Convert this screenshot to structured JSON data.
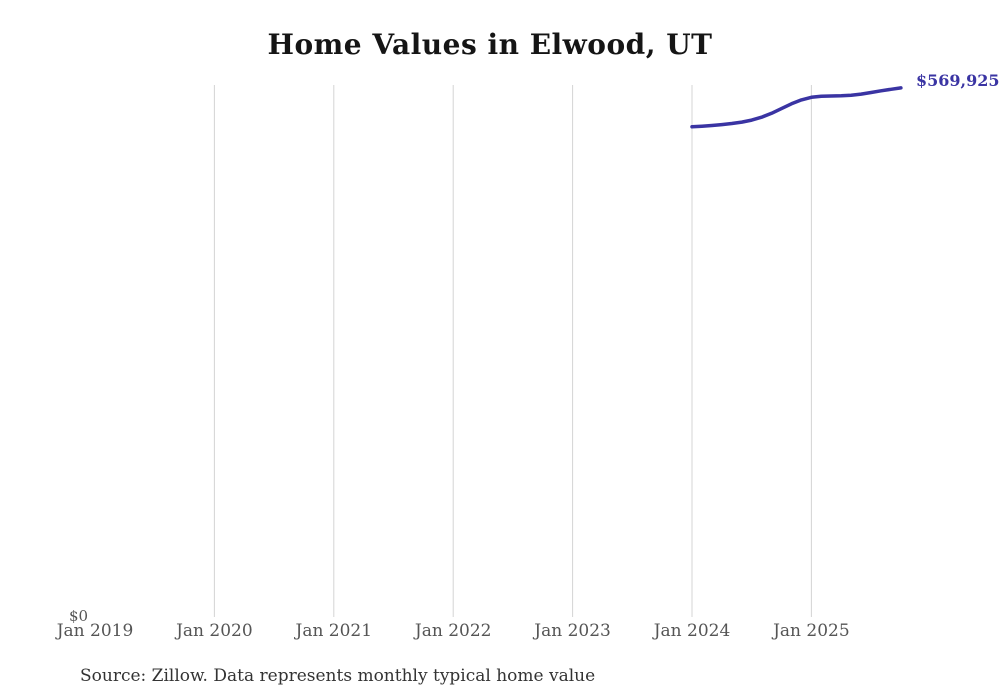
{
  "header": {
    "title": "Home Values in Elwood, UT"
  },
  "footer": {
    "source_note": "Source: Zillow. Data represents monthly typical home value"
  },
  "colors": {
    "background": "#ffffff",
    "title_text": "#151515",
    "axis_text": "#555555",
    "source_text": "#333333",
    "gridline": "#d4d4d4",
    "line": "#3a34a3",
    "end_label_text": "#3a34a3"
  },
  "chart_data": {
    "type": "line",
    "title": "Home Values in Elwood, UT",
    "series_name": "Typical home value",
    "grid": "vertical",
    "ylim": [
      0,
      573000
    ],
    "y_zero_label": "$0",
    "end_value_label": "$569,925",
    "x_ticks": [
      {
        "label": "Jan 2019",
        "month": "2019-01"
      },
      {
        "label": "Jan 2020",
        "month": "2020-01"
      },
      {
        "label": "Jan 2021",
        "month": "2021-01"
      },
      {
        "label": "Jan 2022",
        "month": "2022-01"
      },
      {
        "label": "Jan 2023",
        "month": "2023-01"
      },
      {
        "label": "Jan 2024",
        "month": "2024-01"
      },
      {
        "label": "Jan 2025",
        "month": "2025-01"
      }
    ],
    "x": [
      "2024-01",
      "2024-02",
      "2024-03",
      "2024-04",
      "2024-05",
      "2024-06",
      "2024-07",
      "2024-08",
      "2024-09",
      "2024-10",
      "2024-11",
      "2024-12",
      "2025-01",
      "2025-02",
      "2025-03",
      "2025-04",
      "2025-05",
      "2025-06",
      "2025-07",
      "2025-08",
      "2025-09",
      "2025-10"
    ],
    "values": [
      528000,
      528600,
      529400,
      530300,
      531500,
      533000,
      535200,
      538300,
      542500,
      547600,
      552800,
      557000,
      559800,
      560900,
      561200,
      561400,
      562000,
      563200,
      564900,
      566700,
      568400,
      569925
    ]
  }
}
